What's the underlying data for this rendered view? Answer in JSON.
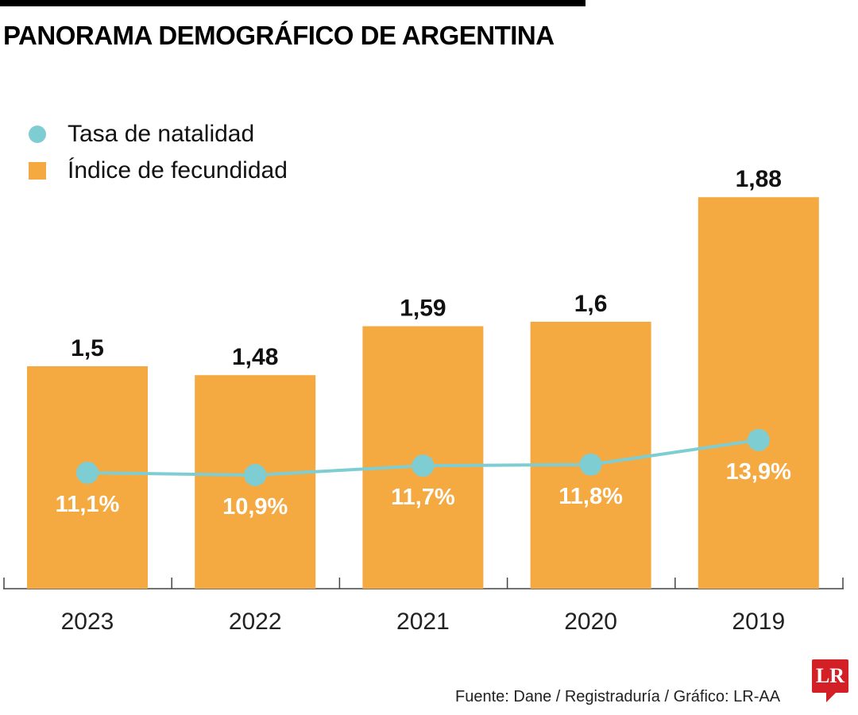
{
  "title": "PANORAMA DEMOGRÁFICO DE ARGENTINA",
  "legend": {
    "line": "Tasa de natalidad",
    "bars": "Índice de fecundidad"
  },
  "source": "Fuente: Dane / Registraduría / Gráfico: LR-AA",
  "logo": "LR",
  "colors": {
    "bars": "#f5a941",
    "line": "#7ecdd2",
    "logo": "#d32027"
  },
  "chart_data": {
    "type": "bar+line",
    "categories": [
      "2023",
      "2022",
      "2021",
      "2020",
      "2019"
    ],
    "series": [
      {
        "name": "Índice de fecundidad",
        "type": "bar",
        "values": [
          1.5,
          1.48,
          1.59,
          1.6,
          1.88
        ],
        "labels": [
          "1,5",
          "1,48",
          "1,59",
          "1,6",
          "1,88"
        ]
      },
      {
        "name": "Tasa de natalidad",
        "type": "line",
        "values": [
          11.1,
          10.9,
          11.7,
          11.8,
          13.9
        ],
        "labels": [
          "11,1%",
          "10,9%",
          "11,7%",
          "11,8%",
          "13,9%"
        ],
        "unit": "%"
      }
    ],
    "grid": false,
    "legend_position": "top-left"
  }
}
